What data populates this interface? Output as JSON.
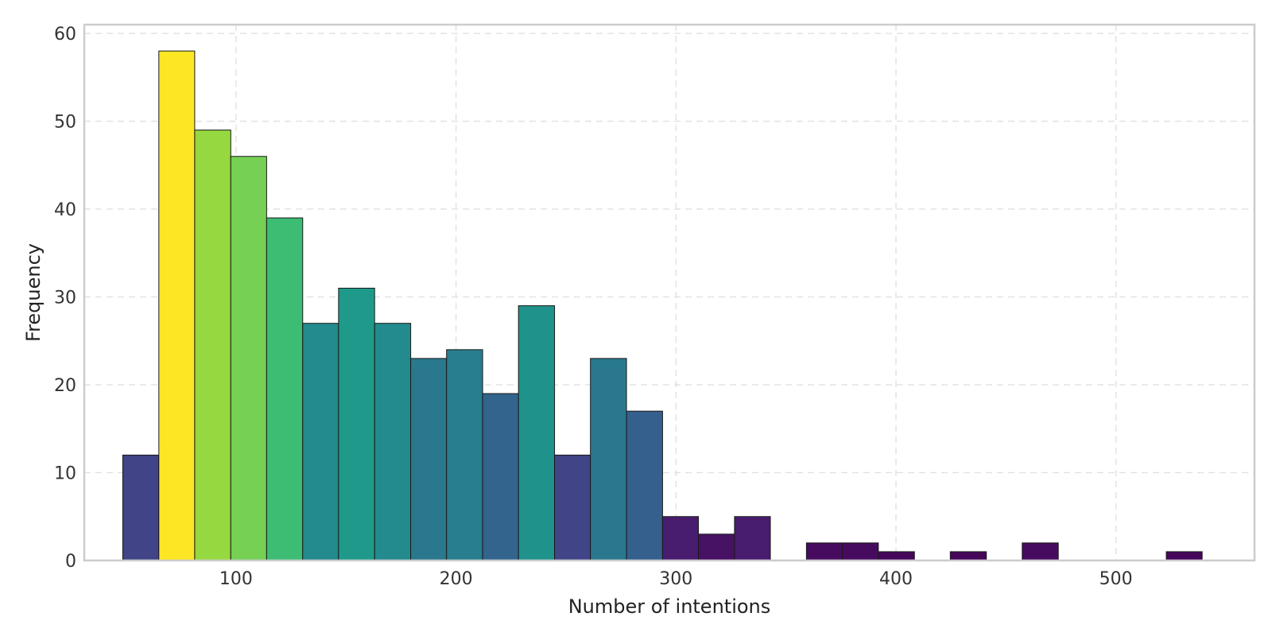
{
  "chart_data": {
    "type": "bar",
    "chart_subtype": "histogram",
    "title": "",
    "xlabel": "Number of intentions",
    "ylabel": "Frequency",
    "xlim": [
      31,
      563
    ],
    "ylim": [
      0,
      61
    ],
    "xticks": [
      100,
      200,
      300,
      400,
      500
    ],
    "yticks": [
      0,
      10,
      20,
      30,
      40,
      50,
      60
    ],
    "grid": true,
    "legend": "none",
    "colormap": "viridis",
    "bins": [
      {
        "x0": 48.5,
        "x1": 64.9,
        "value": 12,
        "color": "#414487"
      },
      {
        "x0": 64.9,
        "x1": 81.2,
        "value": 58,
        "color": "#fde725"
      },
      {
        "x0": 81.2,
        "x1": 97.6,
        "value": 49,
        "color": "#95d840"
      },
      {
        "x0": 97.6,
        "x1": 113.9,
        "value": 46,
        "color": "#75d054"
      },
      {
        "x0": 113.9,
        "x1": 130.3,
        "value": 39,
        "color": "#3dbc74"
      },
      {
        "x0": 130.3,
        "x1": 146.6,
        "value": 27,
        "color": "#238a8d"
      },
      {
        "x0": 146.6,
        "x1": 163.0,
        "value": 31,
        "color": "#1f9a8a"
      },
      {
        "x0": 163.0,
        "x1": 179.4,
        "value": 27,
        "color": "#238a8d"
      },
      {
        "x0": 179.4,
        "x1": 195.7,
        "value": 23,
        "color": "#2a788e"
      },
      {
        "x0": 195.7,
        "x1": 212.1,
        "value": 24,
        "color": "#287d8e"
      },
      {
        "x0": 212.1,
        "x1": 228.4,
        "value": 19,
        "color": "#32648e"
      },
      {
        "x0": 228.4,
        "x1": 244.8,
        "value": 29,
        "color": "#20928c"
      },
      {
        "x0": 244.8,
        "x1": 261.1,
        "value": 12,
        "color": "#414487"
      },
      {
        "x0": 261.1,
        "x1": 277.5,
        "value": 23,
        "color": "#2a788e"
      },
      {
        "x0": 277.5,
        "x1": 293.9,
        "value": 17,
        "color": "#355f8d"
      },
      {
        "x0": 293.9,
        "x1": 310.2,
        "value": 5,
        "color": "#481c6e"
      },
      {
        "x0": 310.2,
        "x1": 326.6,
        "value": 3,
        "color": "#471164"
      },
      {
        "x0": 326.6,
        "x1": 342.9,
        "value": 5,
        "color": "#481c6e"
      },
      {
        "x0": 342.9,
        "x1": 359.3,
        "value": 0,
        "color": "#440154"
      },
      {
        "x0": 359.3,
        "x1": 375.6,
        "value": 2,
        "color": "#460b5e"
      },
      {
        "x0": 375.6,
        "x1": 392.0,
        "value": 2,
        "color": "#460b5e"
      },
      {
        "x0": 392.0,
        "x1": 408.4,
        "value": 1,
        "color": "#45065a"
      },
      {
        "x0": 408.4,
        "x1": 424.7,
        "value": 0,
        "color": "#440154"
      },
      {
        "x0": 424.7,
        "x1": 441.1,
        "value": 1,
        "color": "#45065a"
      },
      {
        "x0": 441.1,
        "x1": 457.4,
        "value": 0,
        "color": "#440154"
      },
      {
        "x0": 457.4,
        "x1": 473.8,
        "value": 2,
        "color": "#460b5e"
      },
      {
        "x0": 473.8,
        "x1": 490.1,
        "value": 0,
        "color": "#440154"
      },
      {
        "x0": 490.1,
        "x1": 506.5,
        "value": 0,
        "color": "#440154"
      },
      {
        "x0": 506.5,
        "x1": 522.9,
        "value": 0,
        "color": "#440154"
      },
      {
        "x0": 522.9,
        "x1": 539.2,
        "value": 1,
        "color": "#45065a"
      }
    ]
  }
}
